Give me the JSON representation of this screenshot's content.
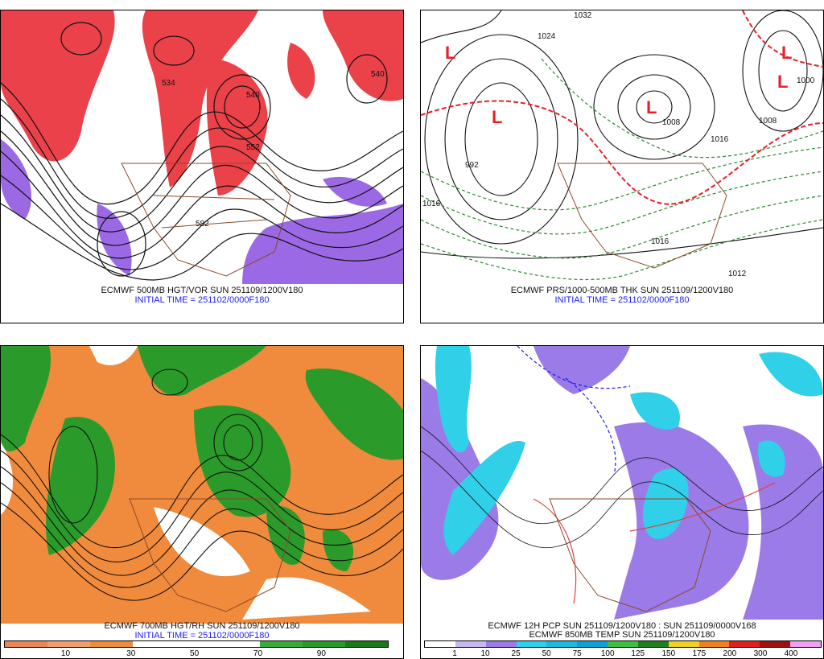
{
  "panels": [
    {
      "id": "p1",
      "title": "ECMWF 500MB HGT/VOR SUN 251109/1200V180",
      "init": "INITIAL TIME = 251102/0000F180",
      "labels": [
        "534",
        "540",
        "552",
        "582",
        "540"
      ]
    },
    {
      "id": "p2",
      "title": "ECMWF PRS/1000-500MB THK SUN 251109/1200V180",
      "init": "INITIAL TIME = 251102/0000F180",
      "labels": [
        "1032",
        "1024",
        "992",
        "1016",
        "1008",
        "1016",
        "1008",
        "1000",
        "1016",
        "1012"
      ]
    },
    {
      "id": "p3",
      "title": "ECMWF 700MB HGT/RH SUN 251109/1200V180",
      "init": "INITIAL TIME = 251102/0000F180",
      "legend_ticks": [
        "10",
        "30",
        "50",
        "70",
        "90"
      ]
    },
    {
      "id": "p4",
      "title": "ECMWF 12H PCP SUN 251109/1200V180 : SUN 251109/0000V168",
      "subtitle": "ECMWF 850MB TEMP SUN 251109/1200V180",
      "legend_ticks": [
        "1",
        "10",
        "25",
        "50",
        "75",
        "100",
        "125",
        "150",
        "175",
        "200",
        "300",
        "400"
      ]
    }
  ],
  "colors": {
    "vorticity": "#e8202a",
    "vort_low": "#8a4fe0",
    "rh_dry": "#f08a3c",
    "rh_moist": "#2a9a2a",
    "pcp_light": "#9a7be8",
    "pcp_heavy": "#30d0e8",
    "border": "#8b4a2a",
    "thickness": "#2a8a2a",
    "low_letter": "#e8202a"
  }
}
